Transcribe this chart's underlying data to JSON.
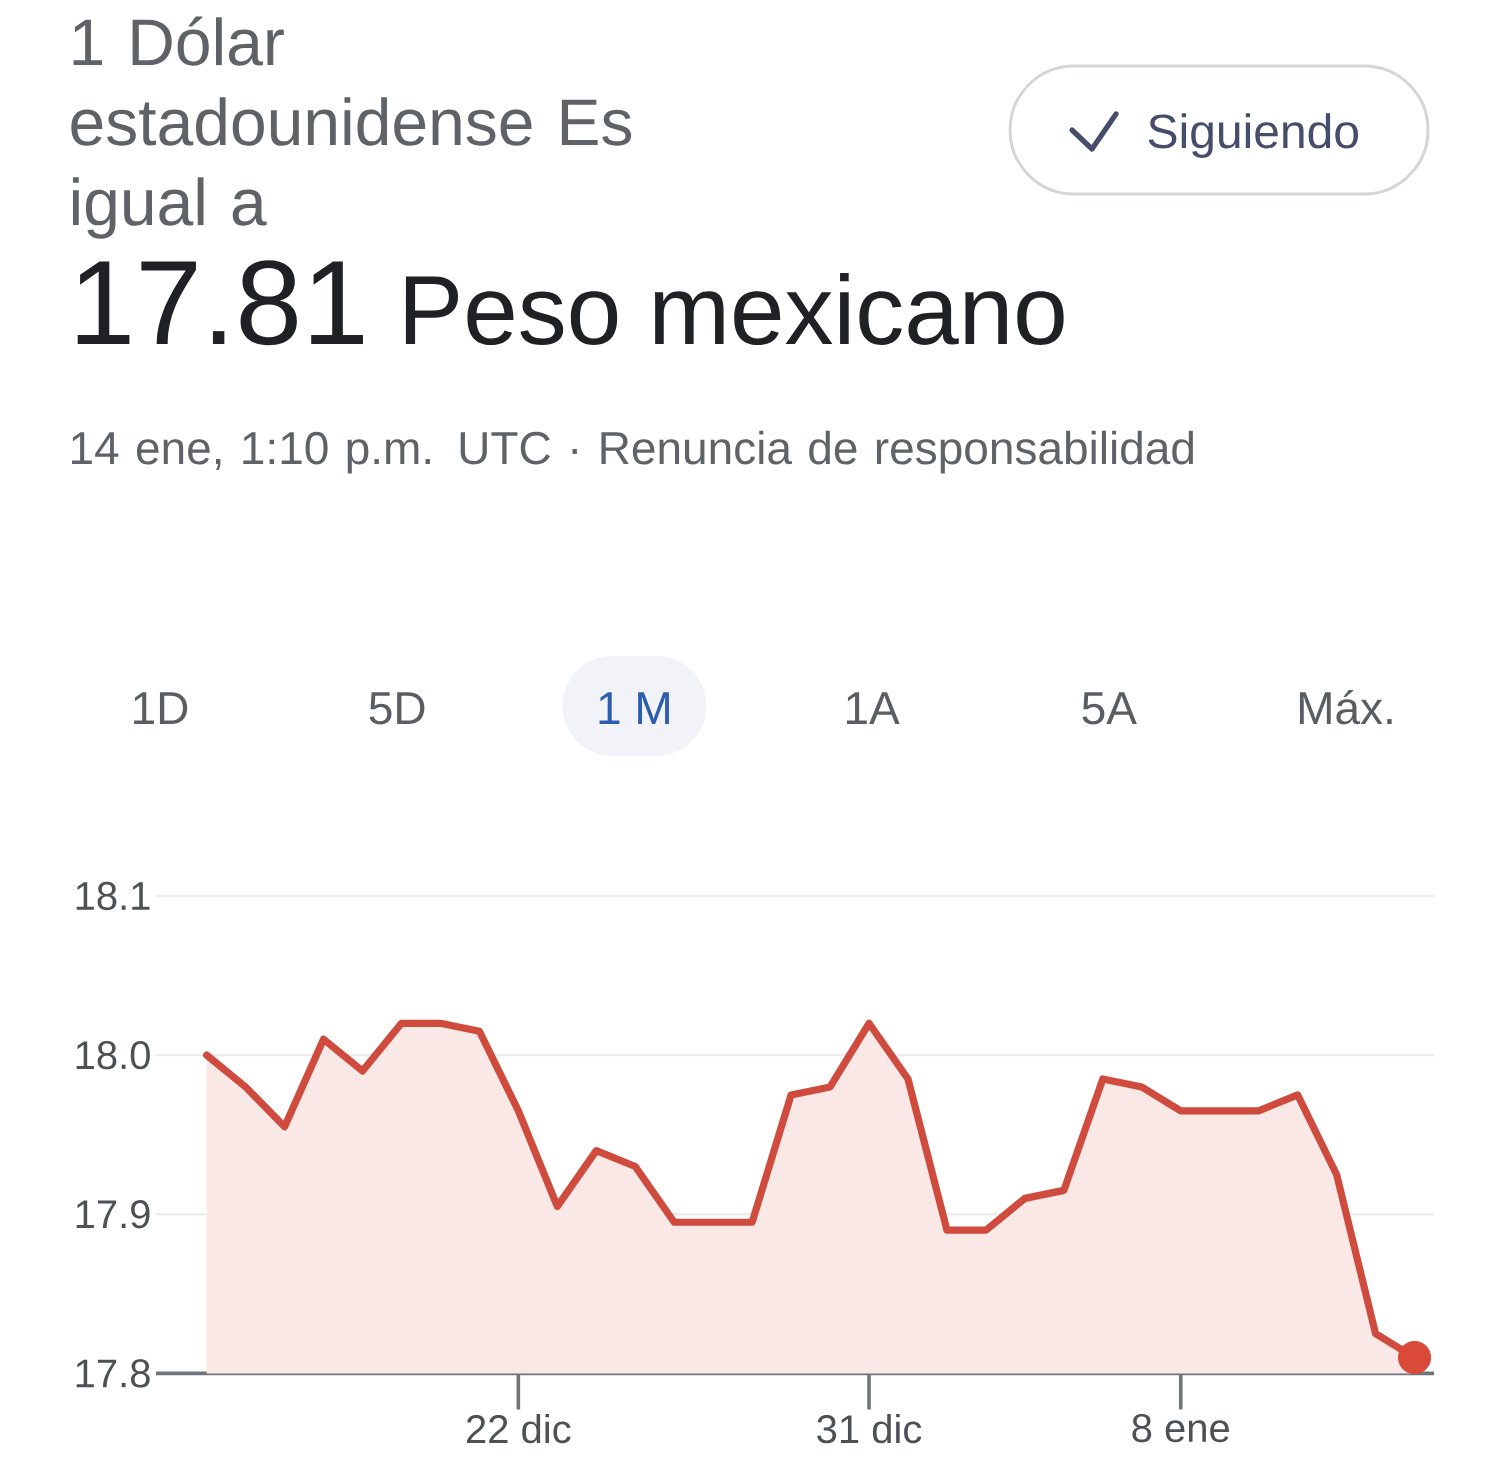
{
  "chart_data": {
    "type": "area",
    "title": "1 Dólar estadounidense Es igual a",
    "annotations": [
      "Siguiendo",
      "17.81",
      "Peso mexicano",
      "14 ene, 1:10 p.m. UTC · Renuncia de responsabilidad",
      "1D",
      "5D",
      "1 M",
      "1A",
      "5A",
      "Máx."
    ],
    "categories": [
      null,
      null,
      null,
      null,
      null,
      null,
      null,
      null,
      "22 dic",
      null,
      null,
      null,
      null,
      null,
      null,
      null,
      null,
      "31 dic",
      null,
      null,
      null,
      null,
      null,
      null,
      null,
      "8 ene",
      null,
      null,
      null,
      null,
      null,
      null
    ],
    "series": [
      {
        "color": "#cf4b3d",
        "values": [
          18.0,
          17.98,
          17.955,
          18.01,
          17.99,
          18.02,
          18.02,
          18.015,
          17.965,
          17.905,
          17.94,
          17.93,
          17.895,
          17.895,
          17.895,
          17.975,
          17.98,
          18.02,
          17.985,
          17.89,
          17.89,
          17.91,
          17.915,
          17.985,
          17.98,
          17.965,
          17.965,
          17.965,
          17.975,
          17.925,
          17.825,
          17.81
        ]
      },
      {
        "type": "scatter",
        "color": "#d94a38",
        "values": [
          null,
          null,
          null,
          null,
          null,
          null,
          null,
          null,
          null,
          null,
          null,
          null,
          null,
          null,
          null,
          null,
          null,
          null,
          null,
          null,
          null,
          null,
          null,
          null,
          null,
          null,
          null,
          null,
          null,
          null,
          null,
          17.81
        ]
      }
    ],
    "ylim": [
      17.8,
      18.1
    ],
    "yticks": [
      {
        "value": 17.8,
        "label": "17.8"
      },
      {
        "value": 17.9,
        "label": "17.9"
      },
      {
        "value": 18.0,
        "label": "18.0"
      },
      {
        "value": 18.1,
        "label": "18.1"
      }
    ],
    "grid": "y"
  }
}
